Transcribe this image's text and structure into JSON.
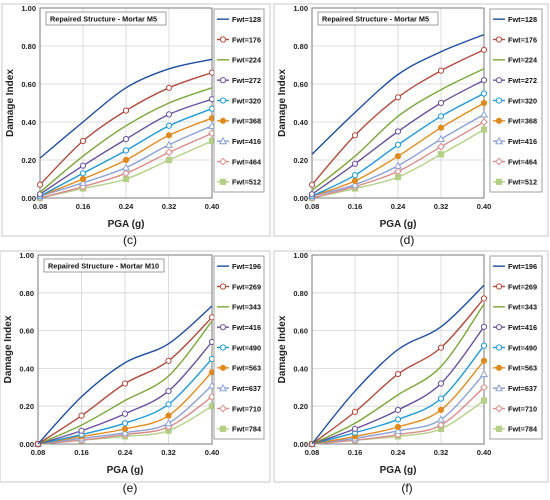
{
  "chart_data": [
    {
      "type": "line",
      "panel_label": "(c)",
      "annotation": "Repaired Structure - Mortar M5",
      "xlabel": "PGA (g)",
      "ylabel": "Damage Index",
      "x": [
        0.08,
        0.16,
        0.24,
        0.32,
        0.4
      ],
      "x_ticks": [
        "0.08",
        "0.16",
        "0.24",
        "0.32",
        "0.40"
      ],
      "ylim": [
        0,
        1
      ],
      "y_ticks": [
        "0.00",
        "0.20",
        "0.40",
        "0.60",
        "0.80",
        "1.00"
      ],
      "grid": true,
      "legend_position": "right",
      "series": [
        {
          "name": "Fwt=128",
          "values": [
            0.21,
            0.4,
            0.58,
            0.68,
            0.73
          ]
        },
        {
          "name": "Fwt=176",
          "values": [
            0.07,
            0.3,
            0.46,
            0.58,
            0.66
          ]
        },
        {
          "name": "Fwt=224",
          "values": [
            0.03,
            0.22,
            0.38,
            0.5,
            0.58
          ]
        },
        {
          "name": "Fwt=272",
          "values": [
            0.02,
            0.17,
            0.31,
            0.44,
            0.52
          ]
        },
        {
          "name": "Fwt=320",
          "values": [
            0.01,
            0.13,
            0.25,
            0.38,
            0.47
          ]
        },
        {
          "name": "Fwt=368",
          "values": [
            0.01,
            0.1,
            0.2,
            0.33,
            0.42
          ]
        },
        {
          "name": "Fwt=416",
          "values": [
            0.01,
            0.08,
            0.16,
            0.28,
            0.38
          ]
        },
        {
          "name": "Fwt=464",
          "values": [
            0.0,
            0.06,
            0.13,
            0.24,
            0.34
          ]
        },
        {
          "name": "Fwt=512",
          "values": [
            0.0,
            0.05,
            0.1,
            0.2,
            0.3
          ]
        }
      ]
    },
    {
      "type": "line",
      "panel_label": "(d)",
      "annotation": "Repaired Structure - Mortar M5",
      "xlabel": "PGA (g)",
      "ylabel": "Damage Index",
      "x": [
        0.08,
        0.16,
        0.24,
        0.32,
        0.4
      ],
      "x_ticks": [
        "0.08",
        "0.16",
        "0.24",
        "0.32",
        "0.40"
      ],
      "ylim": [
        0,
        1
      ],
      "y_ticks": [
        "0.00",
        "0.20",
        "0.40",
        "0.60",
        "0.80",
        "1.00"
      ],
      "grid": true,
      "legend_position": "right",
      "series": [
        {
          "name": "Fwt=128",
          "values": [
            0.23,
            0.45,
            0.65,
            0.77,
            0.86
          ]
        },
        {
          "name": "Fwt=176",
          "values": [
            0.07,
            0.33,
            0.53,
            0.67,
            0.78
          ]
        },
        {
          "name": "Fwt=224",
          "values": [
            0.04,
            0.22,
            0.43,
            0.57,
            0.68
          ]
        },
        {
          "name": "Fwt=272",
          "values": [
            0.02,
            0.18,
            0.35,
            0.5,
            0.62
          ]
        },
        {
          "name": "Fwt=320",
          "values": [
            0.01,
            0.12,
            0.28,
            0.43,
            0.55
          ]
        },
        {
          "name": "Fwt=368",
          "values": [
            0.01,
            0.09,
            0.22,
            0.37,
            0.5
          ]
        },
        {
          "name": "Fwt=416",
          "values": [
            0.01,
            0.07,
            0.17,
            0.31,
            0.44
          ]
        },
        {
          "name": "Fwt=464",
          "values": [
            0.0,
            0.06,
            0.14,
            0.27,
            0.4
          ]
        },
        {
          "name": "Fwt=512",
          "values": [
            0.0,
            0.05,
            0.11,
            0.23,
            0.36
          ]
        }
      ]
    },
    {
      "type": "line",
      "panel_label": "(e)",
      "annotation": "Repaired Structure - Mortar M10",
      "xlabel": "PGA (g)",
      "ylabel": "Damage Index",
      "x": [
        0.08,
        0.16,
        0.24,
        0.32,
        0.4
      ],
      "x_ticks": [
        "0.08",
        "0.16",
        "0.24",
        "0.32",
        "0.40"
      ],
      "ylim": [
        0,
        1
      ],
      "y_ticks": [
        "0.00",
        "0.20",
        "0.40",
        "0.60",
        "0.80",
        "1.00"
      ],
      "grid": true,
      "legend_position": "right",
      "series": [
        {
          "name": "Fwt=196",
          "values": [
            0.0,
            0.25,
            0.43,
            0.53,
            0.73
          ]
        },
        {
          "name": "Fwt=269",
          "values": [
            0.0,
            0.15,
            0.32,
            0.44,
            0.67
          ]
        },
        {
          "name": "Fwt=343",
          "values": [
            0.0,
            0.1,
            0.23,
            0.36,
            0.65
          ]
        },
        {
          "name": "Fwt=416",
          "values": [
            0.0,
            0.07,
            0.16,
            0.28,
            0.54
          ]
        },
        {
          "name": "Fwt=490",
          "values": [
            0.0,
            0.05,
            0.11,
            0.21,
            0.45
          ]
        },
        {
          "name": "Fwt=563",
          "values": [
            0.0,
            0.04,
            0.08,
            0.15,
            0.38
          ]
        },
        {
          "name": "Fwt=637",
          "values": [
            0.0,
            0.03,
            0.06,
            0.11,
            0.31
          ]
        },
        {
          "name": "Fwt=710",
          "values": [
            0.0,
            0.02,
            0.05,
            0.09,
            0.25
          ]
        },
        {
          "name": "Fwt=784",
          "values": [
            0.0,
            0.02,
            0.04,
            0.07,
            0.2
          ]
        }
      ]
    },
    {
      "type": "line",
      "panel_label": "(f)",
      "annotation": "",
      "xlabel": "PGA (g)",
      "ylabel": "Damage Index",
      "x": [
        0.08,
        0.16,
        0.24,
        0.32,
        0.4
      ],
      "x_ticks": [
        "0.08",
        "0.16",
        "0.24",
        "0.32",
        "0.40"
      ],
      "ylim": [
        0,
        1
      ],
      "y_ticks": [
        "0.00",
        "0.20",
        "0.40",
        "0.60",
        "0.80",
        "1.00"
      ],
      "grid": true,
      "legend_position": "right",
      "series": [
        {
          "name": "Fwt=196",
          "values": [
            0.0,
            0.28,
            0.5,
            0.62,
            0.84
          ]
        },
        {
          "name": "Fwt=269",
          "values": [
            0.0,
            0.17,
            0.37,
            0.51,
            0.77
          ]
        },
        {
          "name": "Fwt=343",
          "values": [
            0.0,
            0.11,
            0.26,
            0.41,
            0.74
          ]
        },
        {
          "name": "Fwt=416",
          "values": [
            0.0,
            0.08,
            0.18,
            0.32,
            0.62
          ]
        },
        {
          "name": "Fwt=490",
          "values": [
            0.0,
            0.06,
            0.13,
            0.24,
            0.52
          ]
        },
        {
          "name": "Fwt=563",
          "values": [
            0.0,
            0.04,
            0.09,
            0.18,
            0.44
          ]
        },
        {
          "name": "Fwt=637",
          "values": [
            0.0,
            0.03,
            0.07,
            0.13,
            0.37
          ]
        },
        {
          "name": "Fwt=710",
          "values": [
            0.0,
            0.02,
            0.05,
            0.1,
            0.3
          ]
        },
        {
          "name": "Fwt=784",
          "values": [
            0.0,
            0.02,
            0.04,
            0.08,
            0.23
          ]
        }
      ]
    }
  ],
  "series_style": {
    "colors": [
      "#1f4e9c",
      "#b04a3c",
      "#7aa63a",
      "#6a4f9c",
      "#1f9ad6",
      "#e08a1e",
      "#8aa0d6",
      "#d98b8b",
      "#b5cf86"
    ],
    "markers": [
      "none",
      "circle",
      "none",
      "circle",
      "circle",
      "circle",
      "triangle",
      "diamond",
      "square"
    ],
    "marker_fill": [
      "none",
      "#ffffff",
      "none",
      "#ffffff",
      "#ffffff",
      "#e08a1e",
      "#ffffff",
      "#ffffff",
      "#b5cf86"
    ],
    "frame_color": "#7a7a7a",
    "grid_color": "#d3d3d3"
  }
}
